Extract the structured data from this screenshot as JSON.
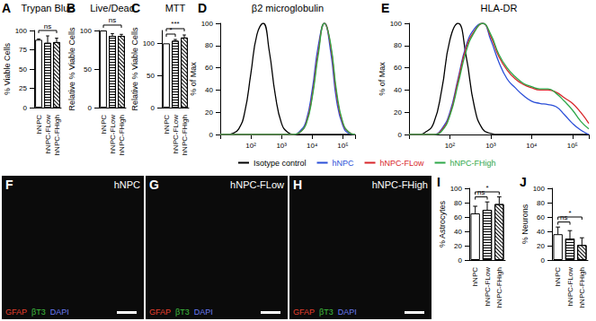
{
  "chart_data": [
    {
      "panel": "A",
      "type": "bar",
      "title": "Trypan Blue",
      "ylabel": "% Viable Cells",
      "categories": [
        "hNPC",
        "hNPC-FLow",
        "hNPC-FHigh"
      ],
      "values": [
        88,
        84,
        85
      ],
      "errors": [
        1,
        9,
        5
      ],
      "colors": [
        "#ffffff",
        "#ffffff",
        "#ffffff"
      ],
      "ylim": [
        0,
        100
      ],
      "yticks": [
        0,
        25,
        50,
        75,
        100
      ],
      "grid": false,
      "annotations": [
        {
          "text": "ns",
          "from": "hNPC",
          "to": "hNPC-FHigh"
        }
      ]
    },
    {
      "panel": "B",
      "type": "bar",
      "title": "Live/Dead",
      "ylabel": "Relative % Viable Cells",
      "categories": [
        "hNPC",
        "hNPC-FLow",
        "hNPC-FHigh"
      ],
      "values": [
        100,
        93,
        93
      ],
      "errors": [
        0,
        3,
        2
      ],
      "colors": [
        "#ffffff",
        "#ffffff",
        "#ffffff"
      ],
      "ylim": [
        0,
        100
      ],
      "yticks": [
        0,
        50,
        100
      ],
      "grid": false,
      "annotations": [
        {
          "text": "ns",
          "from": "hNPC",
          "to": "hNPC-FHigh"
        }
      ]
    },
    {
      "panel": "C",
      "type": "bar",
      "title": "MTT",
      "ylabel": "Relative % Viable Cells",
      "categories": [
        "hNPC",
        "hNPC-FLow",
        "hNPC-FHigh"
      ],
      "values": [
        100,
        104,
        109
      ],
      "errors": [
        0,
        2,
        4
      ],
      "colors": [
        "#ffffff",
        "#ffffff",
        "#ffffff"
      ],
      "ylim": [
        0,
        120
      ],
      "yticks": [
        0,
        50,
        100
      ],
      "grid": false,
      "annotations": [
        {
          "text": "*",
          "from": "hNPC",
          "to": "hNPC-FLow"
        },
        {
          "text": "***",
          "from": "hNPC",
          "to": "hNPC-FHigh"
        }
      ]
    },
    {
      "panel": "D",
      "type": "line",
      "title": "β2 microglobulin",
      "ylabel": "% of Max",
      "log": "x",
      "x": [
        10,
        16,
        25,
        40,
        63,
        100,
        158,
        251,
        398,
        631,
        1000,
        1585,
        2512,
        3981,
        6310,
        10000,
        15849,
        25119,
        39811,
        63096,
        100000,
        158489,
        251189
      ],
      "series": [
        {
          "name": "Isotype control",
          "color": "#000000",
          "values": [
            0,
            0,
            1,
            5,
            20,
            55,
            90,
            100,
            75,
            35,
            10,
            2,
            0,
            0,
            0,
            0,
            0,
            0,
            0,
            0,
            0,
            0,
            0
          ]
        },
        {
          "name": "hNPC",
          "color": "#2b4fd8",
          "values": [
            0,
            0,
            0,
            0,
            0,
            0,
            0,
            0,
            0,
            0,
            0,
            0,
            0,
            3,
            12,
            40,
            80,
            100,
            75,
            30,
            8,
            1,
            0
          ]
        },
        {
          "name": "hNPC-FLow",
          "color": "#d8262a",
          "values": [
            0,
            0,
            0,
            0,
            0,
            0,
            0,
            0,
            0,
            0,
            0,
            0,
            0,
            2,
            10,
            35,
            75,
            100,
            80,
            35,
            10,
            2,
            0
          ]
        },
        {
          "name": "hNPC-FHigh",
          "color": "#2fa84a",
          "values": [
            0,
            0,
            0,
            0,
            0,
            0,
            0,
            0,
            0,
            0,
            0,
            0,
            0,
            2,
            9,
            33,
            72,
            100,
            82,
            38,
            11,
            2,
            0
          ]
        }
      ],
      "xlim": [
        10,
        251189
      ],
      "xticks": [
        {
          "value": 100,
          "label": "10²"
        },
        {
          "value": 1000,
          "label": "10³"
        },
        {
          "value": 10000,
          "label": "10⁴"
        },
        {
          "value": 100000,
          "label": "10⁵"
        }
      ],
      "ylim": [
        0,
        100
      ],
      "yticks": [
        0,
        20,
        40,
        60,
        80,
        100
      ],
      "grid": false,
      "legend": "bottom"
    },
    {
      "panel": "E",
      "type": "line",
      "title": "HLA-DR",
      "ylabel": "% of Max",
      "log": "x",
      "x": [
        10,
        16,
        25,
        40,
        63,
        100,
        158,
        251,
        398,
        631,
        1000,
        1585,
        2512,
        3981,
        6310,
        10000,
        15849,
        25119,
        39811,
        63096,
        100000,
        158489,
        251189
      ],
      "series": [
        {
          "name": "Isotype control",
          "color": "#000000",
          "values": [
            0,
            0,
            2,
            10,
            40,
            85,
            100,
            70,
            25,
            5,
            1,
            0,
            0,
            0,
            0,
            0,
            0,
            0,
            0,
            0,
            0,
            0,
            0
          ]
        },
        {
          "name": "hNPC",
          "color": "#2b4fd8",
          "values": [
            0,
            0,
            0,
            0,
            5,
            20,
            50,
            80,
            95,
            100,
            85,
            65,
            50,
            42,
            35,
            30,
            28,
            27,
            25,
            18,
            10,
            4,
            0
          ]
        },
        {
          "name": "hNPC-FLow",
          "color": "#d8262a",
          "values": [
            0,
            0,
            0,
            0,
            4,
            18,
            48,
            78,
            93,
            100,
            88,
            70,
            58,
            50,
            45,
            42,
            40,
            40,
            38,
            33,
            28,
            20,
            10
          ]
        },
        {
          "name": "hNPC-FHigh",
          "color": "#2fa84a",
          "values": [
            0,
            0,
            0,
            0,
            3,
            17,
            45,
            75,
            92,
            100,
            90,
            72,
            60,
            52,
            46,
            43,
            41,
            41,
            37,
            30,
            22,
            12,
            5
          ]
        }
      ],
      "xlim": [
        10,
        251189
      ],
      "xticks": [
        {
          "value": 100,
          "label": "10²"
        },
        {
          "value": 1000,
          "label": "10³"
        },
        {
          "value": 10000,
          "label": "10⁴"
        },
        {
          "value": 100000,
          "label": "10⁵"
        }
      ],
      "ylim": [
        0,
        100
      ],
      "yticks": [
        0,
        20,
        40,
        60,
        80,
        100
      ],
      "grid": false
    },
    {
      "panel": "F",
      "type": "image",
      "title": "hNPC",
      "stains": [
        {
          "name": "GFAP",
          "color": "#e8402f"
        },
        {
          "name": "βT3",
          "color": "#3fbf3f"
        },
        {
          "name": "DAPI",
          "color": "#6a7cf5"
        }
      ]
    },
    {
      "panel": "G",
      "type": "image",
      "title": "hNPC-FLow",
      "stains": [
        {
          "name": "GFAP",
          "color": "#e8402f"
        },
        {
          "name": "βT3",
          "color": "#3fbf3f"
        },
        {
          "name": "DAPI",
          "color": "#6a7cf5"
        }
      ]
    },
    {
      "panel": "H",
      "type": "image",
      "title": "hNPC-FHigh",
      "stains": [
        {
          "name": "GFAP",
          "color": "#e8402f"
        },
        {
          "name": "βT3",
          "color": "#3fbf3f"
        },
        {
          "name": "DAPI",
          "color": "#6a7cf5"
        }
      ]
    },
    {
      "panel": "I",
      "type": "bar",
      "ylabel": "% Astrocytes",
      "categories": [
        "hNPC",
        "hNPC-FLow",
        "hNPC-FHigh"
      ],
      "values": [
        65,
        70,
        78
      ],
      "errors": [
        10,
        11,
        10
      ],
      "colors": [
        "#ffffff",
        "#ffffff",
        "#ffffff"
      ],
      "ylim": [
        0,
        100
      ],
      "yticks": [
        0,
        20,
        40,
        60,
        80,
        100
      ],
      "grid": false,
      "annotations": [
        {
          "text": "ns",
          "from": "hNPC",
          "to": "hNPC-FLow"
        },
        {
          "text": "*",
          "from": "hNPC",
          "to": "hNPC-FHigh"
        }
      ]
    },
    {
      "panel": "J",
      "type": "bar",
      "ylabel": "% Neurons",
      "categories": [
        "hNPC",
        "hNPC-FLow",
        "hNPC-FHigh"
      ],
      "values": [
        36,
        30,
        21
      ],
      "errors": [
        10,
        11,
        10
      ],
      "colors": [
        "#ffffff",
        "#ffffff",
        "#ffffff"
      ],
      "ylim": [
        0,
        100
      ],
      "yticks": [
        0,
        20,
        40,
        60,
        80,
        100
      ],
      "grid": false,
      "annotations": [
        {
          "text": "ns",
          "from": "hNPC",
          "to": "hNPC-FLow"
        },
        {
          "text": "*",
          "from": "hNPC",
          "to": "hNPC-FHigh"
        }
      ]
    }
  ]
}
